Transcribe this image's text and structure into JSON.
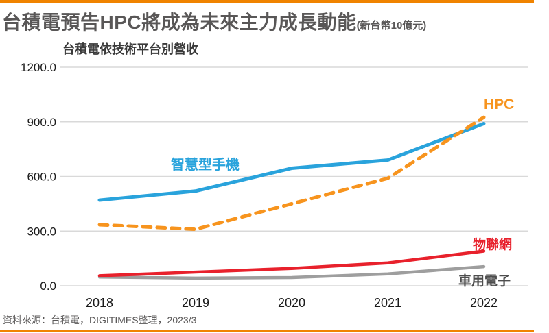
{
  "header": {
    "title": "台積電預告HPC將成為未來主力成長動能",
    "title_suffix": "(新台幣10億元)"
  },
  "chart_data": {
    "type": "line",
    "title": "台積電依技術平台別營收",
    "unit": "新台幣10億元",
    "categories": [
      "2018",
      "2019",
      "2020",
      "2021",
      "2022"
    ],
    "series": [
      {
        "key": "smartphone",
        "name": "智慧型手機",
        "values": [
          470,
          520,
          645,
          690,
          890
        ],
        "color": "#29A3DC",
        "style": "solid",
        "line_width": 5,
        "zorder": 3
      },
      {
        "key": "hpc",
        "name": "HPC",
        "values": [
          335,
          310,
          450,
          590,
          925
        ],
        "color": "#F7941E",
        "style": "dashed",
        "line_width": 5,
        "zorder": 4
      },
      {
        "key": "iot",
        "name": "物聯網",
        "values": [
          55,
          75,
          95,
          125,
          190
        ],
        "color": "#E8212C",
        "style": "solid",
        "line_width": 4.5,
        "zorder": 2
      },
      {
        "key": "automotive",
        "name": "車用電子",
        "values": [
          48,
          42,
          45,
          65,
          105
        ],
        "color": "#9E9E9E",
        "label_color": "#4D4D4D",
        "style": "solid",
        "line_width": 4.5,
        "zorder": 1
      }
    ],
    "ylim": [
      0,
      1200
    ],
    "yticks": [
      0,
      300,
      600,
      900,
      1200
    ],
    "ytick_labels": [
      "0.0",
      "300.0",
      "600.0",
      "900.0",
      "1200.0"
    ],
    "grid": true,
    "legend_position": "inline-labels"
  },
  "footer": {
    "source": "資料來源：台積電，DIGITIMES整理，2023/3"
  },
  "colors": {
    "accent_bar": "#F08300",
    "title_text": "#595757",
    "grid": "#D9D9D9"
  }
}
